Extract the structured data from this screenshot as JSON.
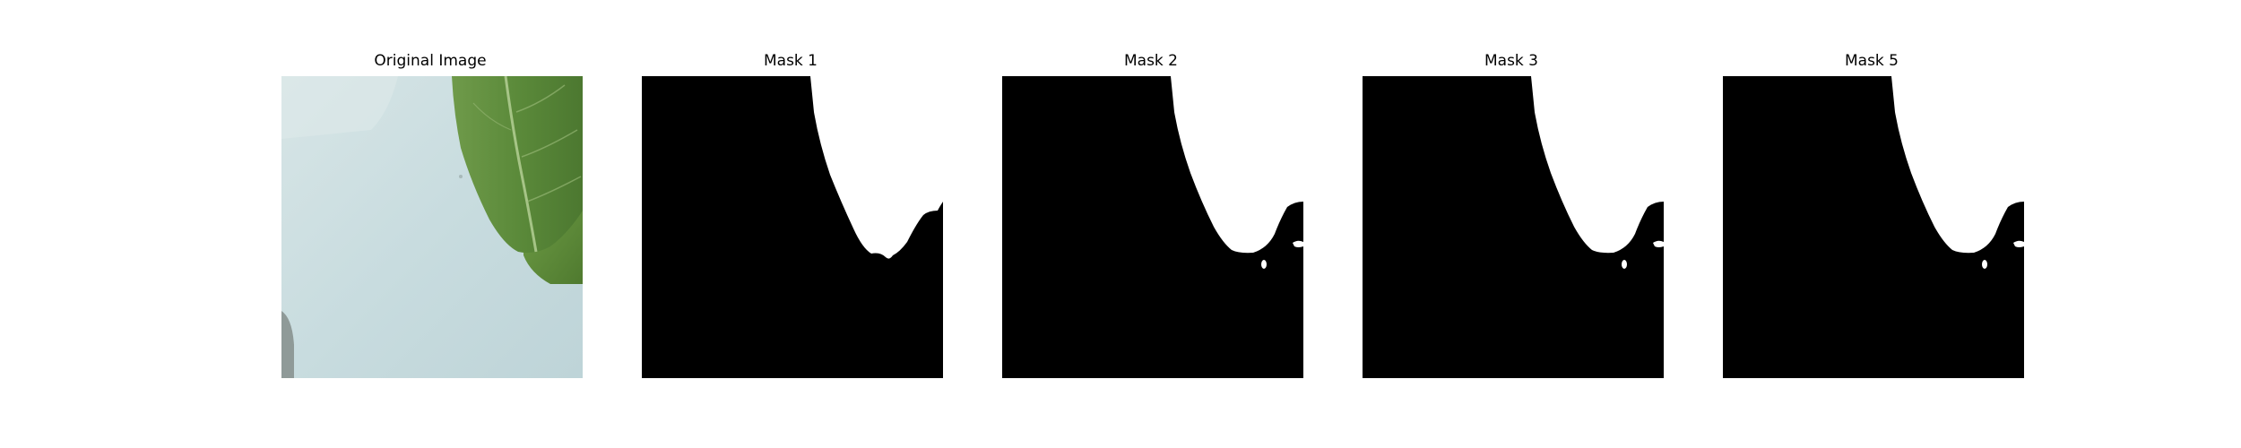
{
  "figure": {
    "panels": [
      {
        "title": "Original Image",
        "content": "photo"
      },
      {
        "title": "Mask 1",
        "content": "mask"
      },
      {
        "title": "Mask 2",
        "content": "mask"
      },
      {
        "title": "Mask 3",
        "content": "mask"
      },
      {
        "title": "Mask 5",
        "content": "mask"
      }
    ]
  },
  "colors": {
    "background": "#ffffff",
    "mask_foreground": "#ffffff",
    "mask_background": "#000000",
    "photo_surface": "#c9dcdf",
    "leaf_green": "#5f8a3c",
    "leaf_dark": "#4d7430"
  }
}
